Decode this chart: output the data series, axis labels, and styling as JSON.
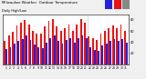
{
  "title": "Milwaukee Weather  Outdoor Temperature",
  "subtitle": "Daily High/Low",
  "days": [
    "1",
    "2",
    "3",
    "4",
    "5",
    "6",
    "7",
    "8",
    "9",
    "10",
    "11",
    "12",
    "13",
    "14",
    "15",
    "16",
    "17",
    "18",
    "19",
    "20",
    "21",
    "22",
    "23",
    "24",
    "25",
    "26",
    "27",
    "28",
    "29",
    "30",
    "31"
  ],
  "highs": [
    42,
    52,
    58,
    70,
    75,
    80,
    72,
    60,
    55,
    55,
    68,
    78,
    82,
    68,
    60,
    65,
    72,
    60,
    72,
    82,
    75,
    50,
    48,
    44,
    55,
    60,
    65,
    70,
    65,
    72,
    60
  ],
  "lows": [
    28,
    32,
    38,
    42,
    46,
    52,
    44,
    36,
    32,
    30,
    40,
    48,
    52,
    42,
    38,
    44,
    48,
    40,
    48,
    52,
    48,
    32,
    26,
    24,
    34,
    38,
    42,
    46,
    42,
    46,
    40
  ],
  "high_color": "#ee1111",
  "low_color": "#2222dd",
  "missing_color": "#888888",
  "bg_color": "#f0f0f0",
  "plot_bg": "#ffffff",
  "ylim_min": 0,
  "ylim_max": 90,
  "ytick_vals": [
    20,
    40,
    60,
    80
  ],
  "ytick_labels": [
    "20",
    "40",
    "60",
    "80"
  ],
  "dotted_col": 20.5,
  "bar_width": 0.42,
  "dpi": 100,
  "figw": 1.6,
  "figh": 0.87
}
